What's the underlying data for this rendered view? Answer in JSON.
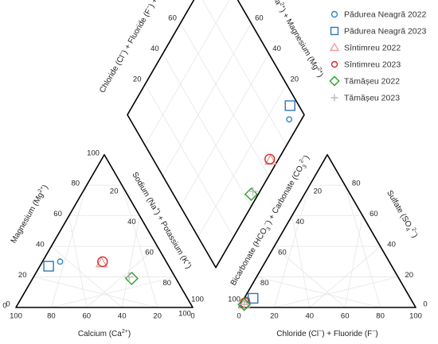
{
  "chart_data": {
    "type": "scatter",
    "subtype": "piper-diagram",
    "grid": true,
    "legend_position": "top-right",
    "axes": {
      "cation_bottom": "Calcium (Ca<sup>2+</sup>)",
      "cation_left": "Magnesium (Mg<sup>2+</sup>)",
      "cation_right": "Sodium (Na<sup>+</sup>) + Potassium (K<sup>+</sup>)",
      "anion_bottom": "Chloride (Cl<sup>−</sup>) + Fluoride (F<sup>−</sup>)",
      "anion_right": "Sulfate (SO<sub>4</sub><sup>2−</sup>)",
      "anion_left": "Bicarbonate (HCO<sub>3</sub><sup>−</sup>) + Carbonate (CO<sub>3</sub><sup>2−</sup>)",
      "diamond_upper_left": "Chloride (Cl<sup>−</sup>) + Fluoride (F<sup>−</sup>) + Sulfate (SO<sub>4</sub><sup>2−</sup>)",
      "diamond_upper_right": "Calcium (Ca<sup>2+</sup>) + Magnesium (Mg<sup>2+</sup>)"
    },
    "ticks": [
      "0",
      "20",
      "40",
      "60",
      "80",
      "100"
    ],
    "series": [
      {
        "name": "Pădurea Neagră 2022",
        "marker": "circle",
        "color": "#2e86c1",
        "size": "small",
        "cation": {
          "ca": 60,
          "mg": 30,
          "na_k": 10
        },
        "anion": {
          "cl_f": 2,
          "so4": 5,
          "hco3": 93
        }
      },
      {
        "name": "Pădurea Neagră 2023",
        "marker": "square",
        "color": "#2e75b6",
        "size": "large",
        "cation": {
          "ca": 68,
          "mg": 27,
          "na_k": 5
        },
        "anion": {
          "cl_f": 5,
          "so4": 6,
          "hco3": 89
        }
      },
      {
        "name": "Sîntimreu 2022",
        "marker": "triangle",
        "color": "#e8a0a0",
        "size": "large",
        "cation": {
          "ca": 37,
          "mg": 29,
          "na_k": 34
        },
        "anion": {
          "cl_f": 2,
          "so4": 2,
          "hco3": 96
        }
      },
      {
        "name": "Sîntimreu 2023",
        "marker": "circle",
        "color": "#d62728",
        "size": "large",
        "cation": {
          "ca": 36,
          "mg": 30,
          "na_k": 34
        },
        "anion": {
          "cl_f": 2,
          "so4": 3,
          "hco3": 95
        }
      },
      {
        "name": "Tămășeu 2022",
        "marker": "diamond",
        "color": "#2ca02c",
        "size": "large",
        "cation": {
          "ca": 25,
          "mg": 19,
          "na_k": 56
        },
        "anion": {
          "cl_f": 2,
          "so4": 2,
          "hco3": 96
        }
      },
      {
        "name": "Tămășeu 2023",
        "marker": "plus",
        "color": "#bbbbbb",
        "size": "large",
        "cation": {
          "ca": 26,
          "mg": 20,
          "na_k": 54
        },
        "anion": {
          "cl_f": 2,
          "so4": 2,
          "hco3": 96
        }
      }
    ]
  }
}
